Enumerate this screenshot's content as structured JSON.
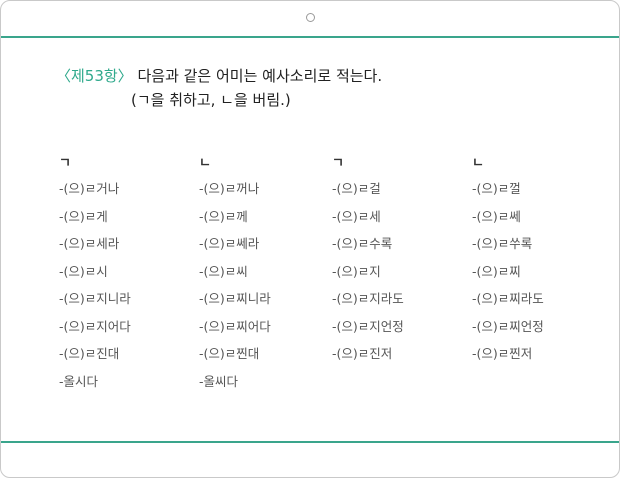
{
  "heading": {
    "article": "〈제53항〉",
    "text": "다음과 같은 어미는 예사소리로 적는다.",
    "line2": "(ㄱ을 취하고, ㄴ을 버림.)"
  },
  "columns": [
    {
      "header": "ㄱ",
      "items": [
        "-(으)ㄹ거나",
        "-(으)ㄹ걸",
        "-(으)ㄹ게",
        "-(으)ㄹ세",
        "-(으)ㄹ세라",
        "-(으)ㄹ수록",
        "-(으)ㄹ시",
        "-(으)ㄹ지",
        "-(으)ㄹ지니라",
        "-(으)ㄹ지라도",
        "-(으)ㄹ지어다",
        "-(으)ㄹ지언정",
        "-(으)ㄹ진대",
        "-(으)ㄹ진저",
        "-올시다"
      ]
    }
  ],
  "col1": {
    "header": "ㄱ",
    "items": [
      "-(으)ㄹ거나",
      "-(으)ㄹ게",
      "-(으)ㄹ세라",
      "-(으)ㄹ시",
      "-(으)ㄹ지니라",
      "-(으)ㄹ지어다",
      "-(으)ㄹ진대",
      "-올시다"
    ]
  },
  "col2": {
    "header": "ㄴ",
    "items": [
      "-(으)ㄹ꺼나",
      "-(으)ㄹ께",
      "-(으)ㄹ쎄라",
      "-(으)ㄹ씨",
      "-(으)ㄹ찌니라",
      "-(으)ㄹ찌어다",
      "-(으)ㄹ찐대",
      "-올씨다"
    ]
  },
  "col3": {
    "header": "ㄱ",
    "items": [
      "-(으)ㄹ걸",
      "-(으)ㄹ세",
      "-(으)ㄹ수록",
      "-(으)ㄹ지",
      "-(으)ㄹ지라도",
      "-(으)ㄹ지언정",
      "-(으)ㄹ진저"
    ]
  },
  "col4": {
    "header": "ㄴ",
    "items": [
      "-(으)ㄹ껄",
      "-(으)ㄹ쎄",
      "-(으)ㄹ쑤록",
      "-(으)ㄹ찌",
      "-(으)ㄹ찌라도",
      "-(으)ㄹ찌언정",
      "-(으)ㄹ찐저"
    ]
  },
  "colors": {
    "accent": "#3aa58c",
    "article": "#2fa98c",
    "text": "#222222",
    "item_text": "#555555",
    "border": "#c9c9c9"
  }
}
